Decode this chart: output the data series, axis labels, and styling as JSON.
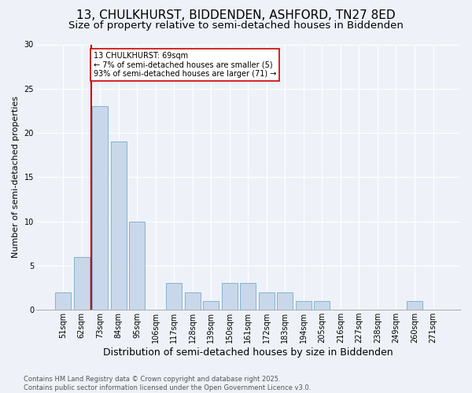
{
  "title1": "13, CHULKHURST, BIDDENDEN, ASHFORD, TN27 8ED",
  "title2": "Size of property relative to semi-detached houses in Biddenden",
  "xlabel": "Distribution of semi-detached houses by size in Biddenden",
  "ylabel": "Number of semi-detached properties",
  "categories": [
    "51sqm",
    "62sqm",
    "73sqm",
    "84sqm",
    "95sqm",
    "106sqm",
    "117sqm",
    "128sqm",
    "139sqm",
    "150sqm",
    "161sqm",
    "172sqm",
    "183sqm",
    "194sqm",
    "205sqm",
    "216sqm",
    "227sqm",
    "238sqm",
    "249sqm",
    "260sqm",
    "271sqm"
  ],
  "values": [
    2,
    6,
    23,
    19,
    10,
    0,
    3,
    2,
    1,
    3,
    3,
    2,
    2,
    1,
    1,
    0,
    0,
    0,
    0,
    1,
    0
  ],
  "bar_color": "#c8d8ea",
  "bar_edge_color": "#7aaac8",
  "vline_color": "#cc0000",
  "vline_x": 1.5,
  "annotation_text": "13 CHULKHURST: 69sqm\n← 7% of semi-detached houses are smaller (5)\n93% of semi-detached houses are larger (71) →",
  "annotation_box_facecolor": "#ffffff",
  "annotation_box_edgecolor": "#cc0000",
  "ylim_max": 30,
  "yticks": [
    0,
    5,
    10,
    15,
    20,
    25,
    30
  ],
  "footnote": "Contains HM Land Registry data © Crown copyright and database right 2025.\nContains public sector information licensed under the Open Government Licence v3.0.",
  "background_color": "#eef2f8",
  "grid_color": "#ffffff",
  "title1_fontsize": 11,
  "title2_fontsize": 9.5,
  "xlabel_fontsize": 9,
  "ylabel_fontsize": 8,
  "tick_fontsize": 7,
  "footnote_fontsize": 6,
  "annot_fontsize": 7
}
